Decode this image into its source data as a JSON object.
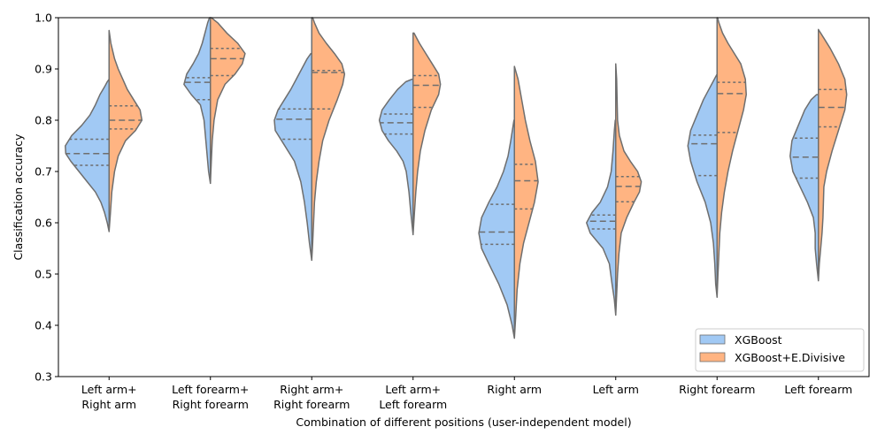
{
  "chart_data": {
    "type": "violin",
    "title": "",
    "xlabel": "Combination of different positions (user-independent model)",
    "ylabel": "Classification accuracy",
    "ylim": [
      0.3,
      1.0
    ],
    "yticks": [
      "0.3",
      "0.4",
      "0.5",
      "0.6",
      "0.7",
      "0.8",
      "0.9",
      "1.0"
    ],
    "grid": false,
    "legend_position": "bottom-right",
    "categories": [
      [
        "Left arm+",
        "Right arm"
      ],
      [
        "Left forearm+",
        "Right forearm"
      ],
      [
        "Right arm+",
        "Right forearm"
      ],
      [
        "Left arm+",
        "Left forearm"
      ],
      [
        "Right arm"
      ],
      [
        "Left arm"
      ],
      [
        "Right forearm"
      ],
      [
        "Left forearm"
      ]
    ],
    "series": [
      {
        "name": "XGBoost",
        "color": "#a1c9f4",
        "side": "left",
        "quartiles": [
          [
            0.712,
            0.735,
            0.763
          ],
          [
            0.84,
            0.874,
            0.883
          ],
          [
            0.763,
            0.802,
            0.822
          ],
          [
            0.773,
            0.795,
            0.812
          ],
          [
            0.558,
            0.582,
            0.636
          ],
          [
            0.588,
            0.603,
            0.615
          ],
          [
            0.692,
            0.754,
            0.771
          ],
          [
            0.687,
            0.728,
            0.765
          ]
        ],
        "profiles": [
          [
            [
              0.583,
              0.0
            ],
            [
              0.6,
              0.04
            ],
            [
              0.62,
              0.1
            ],
            [
              0.64,
              0.18
            ],
            [
              0.66,
              0.3
            ],
            [
              0.68,
              0.48
            ],
            [
              0.7,
              0.66
            ],
            [
              0.72,
              0.84
            ],
            [
              0.735,
              0.95
            ],
            [
              0.75,
              0.96
            ],
            [
              0.77,
              0.82
            ],
            [
              0.79,
              0.6
            ],
            [
              0.81,
              0.42
            ],
            [
              0.83,
              0.3
            ],
            [
              0.85,
              0.2
            ],
            [
              0.865,
              0.1
            ],
            [
              0.875,
              0.04
            ],
            [
              0.88,
              0.0
            ]
          ],
          [
            [
              0.677,
              0.0
            ],
            [
              0.7,
              0.04
            ],
            [
              0.73,
              0.07
            ],
            [
              0.76,
              0.1
            ],
            [
              0.8,
              0.14
            ],
            [
              0.83,
              0.22
            ],
            [
              0.85,
              0.42
            ],
            [
              0.87,
              0.58
            ],
            [
              0.89,
              0.52
            ],
            [
              0.91,
              0.38
            ],
            [
              0.93,
              0.26
            ],
            [
              0.95,
              0.18
            ],
            [
              0.97,
              0.12
            ],
            [
              0.99,
              0.06
            ],
            [
              1.0,
              0.02
            ]
          ],
          [
            [
              0.527,
              0.0
            ],
            [
              0.56,
              0.05
            ],
            [
              0.6,
              0.1
            ],
            [
              0.64,
              0.16
            ],
            [
              0.68,
              0.24
            ],
            [
              0.72,
              0.38
            ],
            [
              0.76,
              0.66
            ],
            [
              0.78,
              0.8
            ],
            [
              0.8,
              0.82
            ],
            [
              0.82,
              0.74
            ],
            [
              0.84,
              0.6
            ],
            [
              0.86,
              0.46
            ],
            [
              0.88,
              0.34
            ],
            [
              0.9,
              0.22
            ],
            [
              0.92,
              0.1
            ],
            [
              0.93,
              0.02
            ]
          ],
          [
            [
              0.577,
              0.0
            ],
            [
              0.62,
              0.05
            ],
            [
              0.66,
              0.09
            ],
            [
              0.7,
              0.15
            ],
            [
              0.72,
              0.22
            ],
            [
              0.74,
              0.36
            ],
            [
              0.76,
              0.54
            ],
            [
              0.78,
              0.68
            ],
            [
              0.8,
              0.74
            ],
            [
              0.82,
              0.68
            ],
            [
              0.84,
              0.52
            ],
            [
              0.86,
              0.34
            ],
            [
              0.875,
              0.16
            ],
            [
              0.88,
              0.02
            ]
          ],
          [
            [
              0.375,
              0.0
            ],
            [
              0.4,
              0.05
            ],
            [
              0.44,
              0.16
            ],
            [
              0.48,
              0.34
            ],
            [
              0.52,
              0.56
            ],
            [
              0.55,
              0.72
            ],
            [
              0.58,
              0.78
            ],
            [
              0.61,
              0.72
            ],
            [
              0.64,
              0.56
            ],
            [
              0.67,
              0.38
            ],
            [
              0.7,
              0.24
            ],
            [
              0.73,
              0.14
            ],
            [
              0.76,
              0.08
            ],
            [
              0.8,
              0.01
            ]
          ],
          [
            [
              0.42,
              0.0
            ],
            [
              0.45,
              0.03
            ],
            [
              0.48,
              0.08
            ],
            [
              0.52,
              0.14
            ],
            [
              0.55,
              0.28
            ],
            [
              0.58,
              0.56
            ],
            [
              0.6,
              0.64
            ],
            [
              0.62,
              0.52
            ],
            [
              0.64,
              0.34
            ],
            [
              0.67,
              0.18
            ],
            [
              0.7,
              0.1
            ],
            [
              0.74,
              0.06
            ],
            [
              0.78,
              0.03
            ],
            [
              0.8,
              0.01
            ]
          ],
          [
            [
              0.455,
              0.0
            ],
            [
              0.48,
              0.03
            ],
            [
              0.52,
              0.05
            ],
            [
              0.56,
              0.08
            ],
            [
              0.6,
              0.14
            ],
            [
              0.64,
              0.26
            ],
            [
              0.68,
              0.44
            ],
            [
              0.72,
              0.58
            ],
            [
              0.75,
              0.64
            ],
            [
              0.78,
              0.58
            ],
            [
              0.81,
              0.44
            ],
            [
              0.84,
              0.3
            ],
            [
              0.86,
              0.18
            ],
            [
              0.88,
              0.06
            ],
            [
              0.89,
              0.0
            ]
          ],
          [
            [
              0.487,
              0.0
            ],
            [
              0.52,
              0.04
            ],
            [
              0.55,
              0.07
            ],
            [
              0.58,
              0.07
            ],
            [
              0.61,
              0.11
            ],
            [
              0.64,
              0.24
            ],
            [
              0.67,
              0.4
            ],
            [
              0.7,
              0.56
            ],
            [
              0.73,
              0.62
            ],
            [
              0.76,
              0.58
            ],
            [
              0.79,
              0.44
            ],
            [
              0.82,
              0.3
            ],
            [
              0.84,
              0.16
            ],
            [
              0.85,
              0.04
            ]
          ]
        ]
      },
      {
        "name": "XGBoost+E.Divisive",
        "color": "#ffb482",
        "side": "right",
        "quartiles": [
          [
            0.783,
            0.8,
            0.828
          ],
          [
            0.887,
            0.92,
            0.94
          ],
          [
            0.822,
            0.893,
            0.897
          ],
          [
            0.825,
            0.868,
            0.887
          ],
          [
            0.627,
            0.682,
            0.714
          ],
          [
            0.641,
            0.671,
            0.69
          ],
          [
            0.776,
            0.852,
            0.874
          ],
          [
            0.787,
            0.825,
            0.86
          ]
        ],
        "profiles": [
          [
            [
              0.583,
              0.0
            ],
            [
              0.62,
              0.03
            ],
            [
              0.66,
              0.06
            ],
            [
              0.7,
              0.12
            ],
            [
              0.73,
              0.2
            ],
            [
              0.76,
              0.36
            ],
            [
              0.78,
              0.58
            ],
            [
              0.8,
              0.72
            ],
            [
              0.82,
              0.68
            ],
            [
              0.84,
              0.54
            ],
            [
              0.86,
              0.4
            ],
            [
              0.88,
              0.3
            ],
            [
              0.9,
              0.2
            ],
            [
              0.92,
              0.12
            ],
            [
              0.95,
              0.04
            ],
            [
              0.975,
              0.0
            ]
          ],
          [
            [
              0.677,
              0.0
            ],
            [
              0.72,
              0.02
            ],
            [
              0.76,
              0.04
            ],
            [
              0.8,
              0.08
            ],
            [
              0.84,
              0.16
            ],
            [
              0.87,
              0.32
            ],
            [
              0.89,
              0.54
            ],
            [
              0.91,
              0.7
            ],
            [
              0.93,
              0.76
            ],
            [
              0.95,
              0.6
            ],
            [
              0.97,
              0.36
            ],
            [
              0.99,
              0.16
            ],
            [
              1.0,
              0.02
            ]
          ],
          [
            [
              0.527,
              0.0
            ],
            [
              0.56,
              0.02
            ],
            [
              0.6,
              0.04
            ],
            [
              0.64,
              0.06
            ],
            [
              0.68,
              0.1
            ],
            [
              0.72,
              0.16
            ],
            [
              0.76,
              0.24
            ],
            [
              0.8,
              0.38
            ],
            [
              0.84,
              0.56
            ],
            [
              0.87,
              0.68
            ],
            [
              0.89,
              0.72
            ],
            [
              0.91,
              0.66
            ],
            [
              0.93,
              0.5
            ],
            [
              0.95,
              0.32
            ],
            [
              0.97,
              0.16
            ],
            [
              0.99,
              0.06
            ],
            [
              1.0,
              0.02
            ]
          ],
          [
            [
              0.577,
              0.0
            ],
            [
              0.62,
              0.03
            ],
            [
              0.66,
              0.06
            ],
            [
              0.7,
              0.1
            ],
            [
              0.74,
              0.16
            ],
            [
              0.78,
              0.26
            ],
            [
              0.82,
              0.4
            ],
            [
              0.85,
              0.56
            ],
            [
              0.87,
              0.6
            ],
            [
              0.89,
              0.56
            ],
            [
              0.91,
              0.42
            ],
            [
              0.93,
              0.28
            ],
            [
              0.95,
              0.14
            ],
            [
              0.97,
              0.02
            ]
          ],
          [
            [
              0.375,
              0.0
            ],
            [
              0.42,
              0.03
            ],
            [
              0.47,
              0.06
            ],
            [
              0.52,
              0.12
            ],
            [
              0.56,
              0.2
            ],
            [
              0.6,
              0.32
            ],
            [
              0.64,
              0.44
            ],
            [
              0.68,
              0.52
            ],
            [
              0.72,
              0.46
            ],
            [
              0.76,
              0.34
            ],
            [
              0.8,
              0.24
            ],
            [
              0.84,
              0.16
            ],
            [
              0.88,
              0.08
            ],
            [
              0.905,
              0.0
            ]
          ],
          [
            [
              0.42,
              0.0
            ],
            [
              0.46,
              0.02
            ],
            [
              0.5,
              0.04
            ],
            [
              0.54,
              0.07
            ],
            [
              0.58,
              0.12
            ],
            [
              0.61,
              0.24
            ],
            [
              0.64,
              0.4
            ],
            [
              0.66,
              0.52
            ],
            [
              0.68,
              0.56
            ],
            [
              0.7,
              0.48
            ],
            [
              0.72,
              0.32
            ],
            [
              0.74,
              0.18
            ],
            [
              0.77,
              0.08
            ],
            [
              0.8,
              0.04
            ],
            [
              0.84,
              0.03
            ],
            [
              0.88,
              0.02
            ],
            [
              0.91,
              0.0
            ]
          ],
          [
            [
              0.455,
              0.0
            ],
            [
              0.5,
              0.02
            ],
            [
              0.54,
              0.04
            ],
            [
              0.58,
              0.06
            ],
            [
              0.62,
              0.1
            ],
            [
              0.66,
              0.16
            ],
            [
              0.7,
              0.24
            ],
            [
              0.74,
              0.34
            ],
            [
              0.78,
              0.46
            ],
            [
              0.82,
              0.58
            ],
            [
              0.85,
              0.64
            ],
            [
              0.88,
              0.62
            ],
            [
              0.91,
              0.52
            ],
            [
              0.93,
              0.38
            ],
            [
              0.95,
              0.24
            ],
            [
              0.97,
              0.12
            ],
            [
              0.99,
              0.04
            ],
            [
              1.0,
              0.01
            ]
          ],
          [
            [
              0.487,
              0.0
            ],
            [
              0.52,
              0.02
            ],
            [
              0.55,
              0.05
            ],
            [
              0.58,
              0.08
            ],
            [
              0.61,
              0.1
            ],
            [
              0.64,
              0.11
            ],
            [
              0.67,
              0.12
            ],
            [
              0.7,
              0.18
            ],
            [
              0.74,
              0.3
            ],
            [
              0.78,
              0.44
            ],
            [
              0.82,
              0.58
            ],
            [
              0.85,
              0.62
            ],
            [
              0.88,
              0.58
            ],
            [
              0.91,
              0.44
            ],
            [
              0.94,
              0.26
            ],
            [
              0.96,
              0.12
            ],
            [
              0.977,
              0.0
            ]
          ]
        ]
      }
    ]
  }
}
